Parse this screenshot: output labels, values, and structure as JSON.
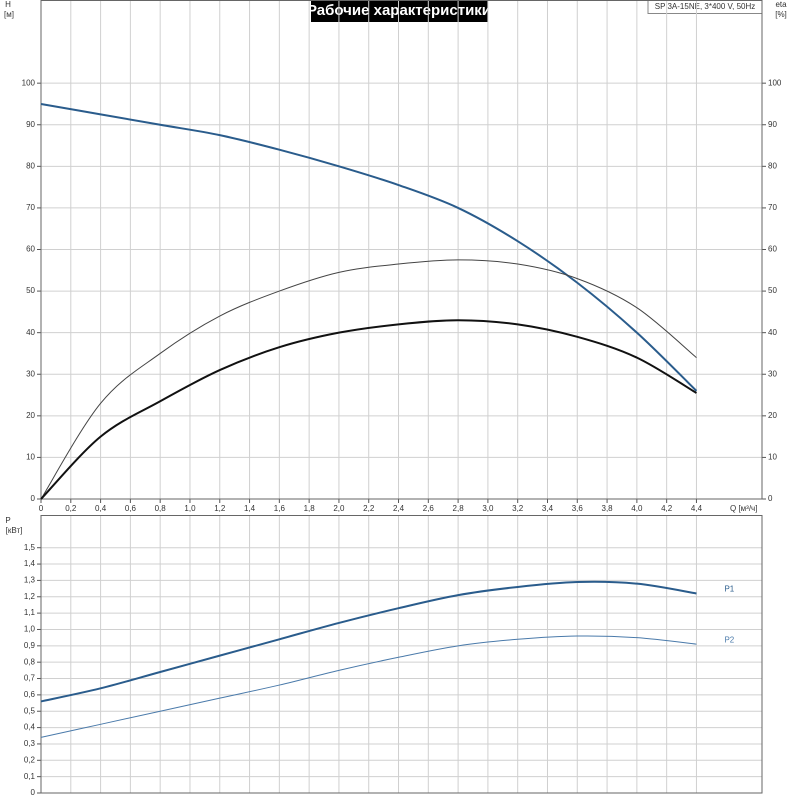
{
  "chart_data": [
    {
      "type": "line",
      "title": "Рабочие характеристики",
      "annotation": "SP 3A-15NE, 3*400 V, 50Hz",
      "ylabel": "H",
      "ylabel_unit": "[м]",
      "y2label": "eta",
      "y2label_unit": "[%]",
      "xlabel": "Q [м³/ч]",
      "x": [
        0,
        0.4,
        0.8,
        1.2,
        1.6,
        2.0,
        2.4,
        2.8,
        3.2,
        3.6,
        4.0,
        4.4
      ],
      "series": [
        {
          "color": "#2a5c8c",
          "values": [
            95,
            92.5,
            90,
            87.5,
            84,
            80,
            75.5,
            70,
            62,
            52,
            40,
            26
          ]
        },
        {
          "color": "#444444",
          "axis": "y2",
          "values": [
            0,
            23,
            35,
            44,
            50,
            54.5,
            56.5,
            57.5,
            56.5,
            53,
            46,
            34
          ]
        },
        {
          "color": "#111111",
          "values": [
            0,
            15,
            23.5,
            31,
            36.5,
            40,
            42,
            43,
            42,
            39,
            34,
            25.5
          ]
        }
      ],
      "xlim": [
        0,
        4.84
      ],
      "xticks": [
        0,
        {
          "value": 0.2,
          "label": "0,2"
        },
        {
          "value": 0.4,
          "label": "0,4"
        },
        {
          "value": 0.6,
          "label": "0,6"
        },
        {
          "value": 0.8,
          "label": "0,8"
        },
        {
          "value": 1.0,
          "label": "1,0"
        },
        {
          "value": 1.2,
          "label": "1,2"
        },
        {
          "value": 1.4,
          "label": "1,4"
        },
        {
          "value": 1.6,
          "label": "1,6"
        },
        {
          "value": 1.8,
          "label": "1,8"
        },
        {
          "value": 2.0,
          "label": "2,0"
        },
        {
          "value": 2.2,
          "label": "2,2"
        },
        {
          "value": 2.4,
          "label": "2,4"
        },
        {
          "value": 2.6,
          "label": "2,6"
        },
        {
          "value": 2.8,
          "label": "2,8"
        },
        {
          "value": 3.0,
          "label": "3,0"
        },
        {
          "value": 3.2,
          "label": "3,2"
        },
        {
          "value": 3.4,
          "label": "3,4"
        },
        {
          "value": 3.6,
          "label": "3,6"
        },
        {
          "value": 3.8,
          "label": "3,8"
        },
        {
          "value": 4.0,
          "label": "4,0"
        },
        {
          "value": 4.2,
          "label": "4,2"
        },
        {
          "value": 4.4,
          "label": "4,4"
        }
      ],
      "ylim": [
        0,
        120
      ],
      "yticks": [
        0,
        10,
        20,
        30,
        40,
        50,
        60,
        70,
        80,
        90,
        100
      ],
      "y2lim": [
        0,
        120
      ],
      "y2ticks": [
        0,
        10,
        20,
        30,
        40,
        50,
        60,
        70,
        80,
        90,
        100
      ],
      "grid": true
    },
    {
      "type": "line",
      "ylabel": "P",
      "ylabel_unit": "[кВт]",
      "x": [
        0,
        0.4,
        0.8,
        1.2,
        1.6,
        2.0,
        2.4,
        2.8,
        3.2,
        3.6,
        4.0,
        4.4
      ],
      "series": [
        {
          "name": "P1",
          "color": "#2a5c8c",
          "values": [
            0.56,
            0.64,
            0.74,
            0.84,
            0.94,
            1.04,
            1.13,
            1.21,
            1.26,
            1.29,
            1.28,
            1.22
          ]
        },
        {
          "name": "P2",
          "color": "#4a7aaa",
          "values": [
            0.34,
            0.42,
            0.5,
            0.58,
            0.66,
            0.75,
            0.83,
            0.9,
            0.94,
            0.96,
            0.95,
            0.91
          ]
        }
      ],
      "xlim": [
        0,
        4.84
      ],
      "ylim": [
        0,
        1.7
      ],
      "yticks": [
        0,
        {
          "value": 0.1,
          "label": "0,1"
        },
        {
          "value": 0.2,
          "label": "0,2"
        },
        {
          "value": 0.3,
          "label": "0,3"
        },
        {
          "value": 0.4,
          "label": "0,4"
        },
        {
          "value": 0.5,
          "label": "0,5"
        },
        {
          "value": 0.6,
          "label": "0,6"
        },
        {
          "value": 0.7,
          "label": "0,7"
        },
        {
          "value": 0.8,
          "label": "0,8"
        },
        {
          "value": 0.9,
          "label": "0,9"
        },
        {
          "value": 1.0,
          "label": "1,0"
        },
        {
          "value": 1.1,
          "label": "1,1"
        },
        {
          "value": 1.2,
          "label": "1,2"
        },
        {
          "value": 1.3,
          "label": "1,3"
        },
        {
          "value": 1.4,
          "label": "1,4"
        },
        {
          "value": 1.5,
          "label": "1,5"
        }
      ],
      "grid": true
    }
  ]
}
